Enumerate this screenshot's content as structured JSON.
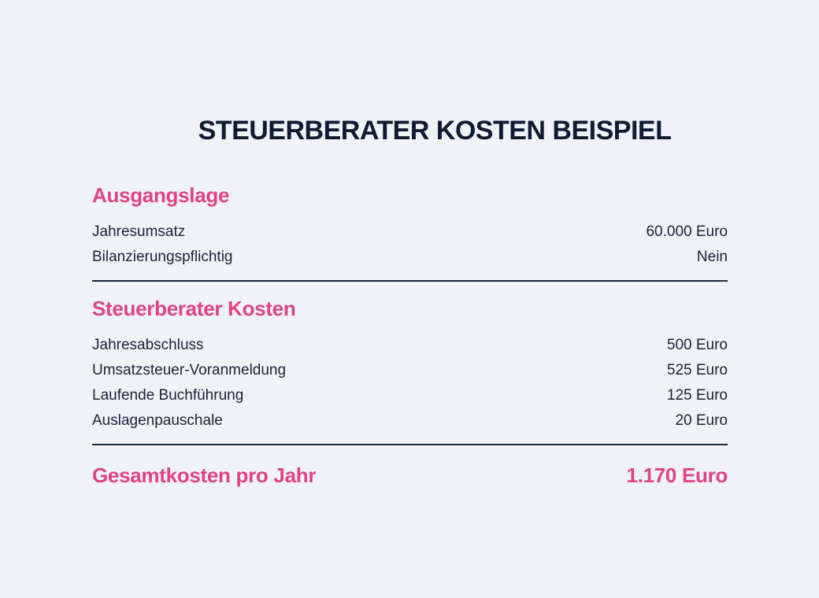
{
  "title": "STEUERBERATER KOSTEN BEISPIEL",
  "section1": {
    "heading": "Ausgangslage",
    "rows": [
      {
        "label": "Jahresumsatz",
        "value": "60.000 Euro"
      },
      {
        "label": "Bilanzierungspflichtig",
        "value": "Nein"
      }
    ]
  },
  "section2": {
    "heading": "Steuerberater Kosten",
    "rows": [
      {
        "label": "Jahresabschluss",
        "value": "500 Euro"
      },
      {
        "label": "Umsatzsteuer-Voranmeldung",
        "value": "525 Euro"
      },
      {
        "label": "Laufende Buchführung",
        "value": "125 Euro"
      },
      {
        "label": "Auslagenpauschale",
        "value": "20 Euro"
      }
    ]
  },
  "total": {
    "label": "Gesamtkosten pro Jahr",
    "value": "1.170 Euro"
  },
  "colors": {
    "background": "#eff2f7",
    "accent": "#e04285",
    "text": "#1b2238",
    "title": "#0f1a33",
    "divider": "#1c2740"
  }
}
